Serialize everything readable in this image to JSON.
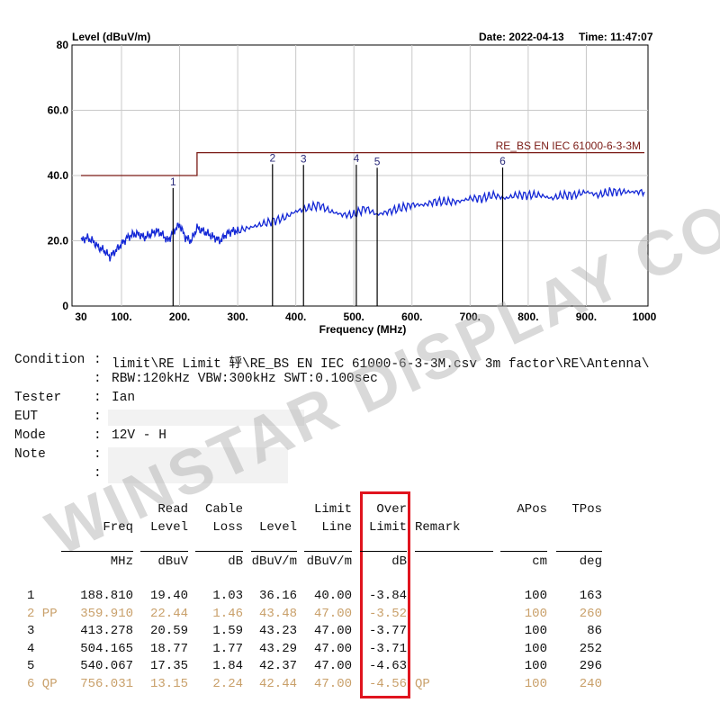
{
  "header": {
    "ylabel": "Level (dBuV/m)",
    "date_label": "Date: 2022-04-13",
    "time_label": "Time: 11:47:07"
  },
  "chart_data": {
    "type": "line",
    "xlabel": "Frequency (MHz)",
    "ylabel": "Level (dBuV/m)",
    "xlim": [
      30,
      1000
    ],
    "ylim": [
      0,
      80
    ],
    "x_ticks": [
      "30",
      "100.",
      "200.",
      "300.",
      "400.",
      "500.",
      "600.",
      "700.",
      "800.",
      "900.",
      "1000"
    ],
    "x_tick_values": [
      30,
      100,
      200,
      300,
      400,
      500,
      600,
      700,
      800,
      900,
      1000
    ],
    "y_ticks": [
      "0",
      "20.0",
      "40.0",
      "60.0",
      "80"
    ],
    "y_tick_values": [
      0,
      20,
      40,
      60,
      80
    ],
    "limit_label": "RE_BS EN IEC 61000-6-3-3M",
    "limit_line": {
      "x": [
        30,
        230,
        230,
        1000
      ],
      "y": [
        40,
        40,
        47,
        47
      ]
    },
    "trace": {
      "x": [
        30,
        40,
        50,
        60,
        70,
        80,
        90,
        100,
        110,
        120,
        130,
        140,
        150,
        160,
        170,
        180,
        190,
        200,
        210,
        220,
        230,
        240,
        250,
        260,
        270,
        280,
        290,
        300,
        320,
        340,
        360,
        380,
        400,
        420,
        440,
        460,
        480,
        500,
        520,
        540,
        560,
        580,
        600,
        620,
        640,
        660,
        680,
        700,
        720,
        740,
        760,
        780,
        800,
        820,
        840,
        860,
        880,
        900,
        920,
        940,
        960,
        980,
        1000
      ],
      "y": [
        20,
        21,
        20,
        18,
        17,
        15,
        17,
        19,
        21,
        22,
        22,
        21,
        22,
        23,
        22,
        20,
        23,
        25,
        21,
        20,
        24,
        23,
        22,
        21,
        20,
        22,
        23,
        23,
        24,
        25,
        26,
        27,
        29,
        30,
        31,
        29,
        28,
        28,
        30,
        28,
        29,
        30,
        31,
        31,
        32,
        32,
        32,
        33,
        33,
        34,
        33,
        34,
        34,
        34,
        33,
        34,
        34,
        35,
        34,
        35,
        35,
        35,
        35
      ]
    },
    "peak_markers": [
      {
        "label": "1",
        "x": 188.81,
        "y": 36.16
      },
      {
        "label": "2",
        "x": 359.91,
        "y": 43.48
      },
      {
        "label": "3",
        "x": 413.278,
        "y": 43.23
      },
      {
        "label": "4",
        "x": 504.165,
        "y": 43.29
      },
      {
        "label": "5",
        "x": 540.067,
        "y": 42.37
      },
      {
        "label": "6",
        "x": 756.031,
        "y": 42.44
      }
    ],
    "colors": {
      "trace": "#1428d6",
      "limit": "#7a1a14",
      "marker": "#000000",
      "grid": "#c8c8c8"
    },
    "grid": true
  },
  "conditions": [
    {
      "key": "Condition",
      "value": "limit\\RE Limit 轷\\RE_BS EN IEC 61000-6-3-3M.csv 3m factor\\RE\\Antenna\\"
    },
    {
      "key": "",
      "value": "RBW:120kHz VBW:300kHz SWT:0.100sec"
    },
    {
      "key": "Tester",
      "value": "Ian"
    },
    {
      "key": "EUT",
      "value": ""
    },
    {
      "key": "Mode",
      "value": "12V - H"
    },
    {
      "key": "Note",
      "value": ""
    },
    {
      "key": "",
      "value": ""
    }
  ],
  "table": {
    "headers": {
      "read_1": "Read",
      "read_2": "Level",
      "cable_1": "Cable",
      "cable_2": "Loss",
      "freq": "Freq",
      "level": "Level",
      "limit_1": "Limit",
      "limit_2": "Line",
      "over_1": "Over",
      "over_2": "Limit",
      "remark": "Remark",
      "apos": "APos",
      "tpos": "TPos"
    },
    "units": {
      "freq": "MHz",
      "read": "dBuV",
      "cable": "dB",
      "level": "dBuV/m",
      "limit": "dBuV/m",
      "over": "dB",
      "apos": "cm",
      "tpos": "deg"
    },
    "rows": [
      {
        "no": "1",
        "freq": "188.810",
        "read": "19.40",
        "cable": "1.03",
        "level": "36.16",
        "limit": "40.00",
        "over": "-3.84",
        "remark": "",
        "apos": "100",
        "tpos": "163",
        "highlight": false
      },
      {
        "no": "2 PP",
        "freq": "359.910",
        "read": "22.44",
        "cable": "1.46",
        "level": "43.48",
        "limit": "47.00",
        "over": "-3.52",
        "remark": "",
        "apos": "100",
        "tpos": "260",
        "highlight": true
      },
      {
        "no": "3",
        "freq": "413.278",
        "read": "20.59",
        "cable": "1.59",
        "level": "43.23",
        "limit": "47.00",
        "over": "-3.77",
        "remark": "",
        "apos": "100",
        "tpos": "86",
        "highlight": false
      },
      {
        "no": "4",
        "freq": "504.165",
        "read": "18.77",
        "cable": "1.77",
        "level": "43.29",
        "limit": "47.00",
        "over": "-3.71",
        "remark": "",
        "apos": "100",
        "tpos": "252",
        "highlight": false
      },
      {
        "no": "5",
        "freq": "540.067",
        "read": "17.35",
        "cable": "1.84",
        "level": "42.37",
        "limit": "47.00",
        "over": "-4.63",
        "remark": "",
        "apos": "100",
        "tpos": "296",
        "highlight": false
      },
      {
        "no": "6 QP",
        "freq": "756.031",
        "read": "13.15",
        "cable": "2.24",
        "level": "42.44",
        "limit": "47.00",
        "over": "-4.56",
        "remark": "QP",
        "apos": "100",
        "tpos": "240",
        "highlight": true
      }
    ],
    "colors": {
      "normal": "#111111",
      "highlight": "#c9a06a",
      "box": "#e0141e"
    }
  },
  "watermark": "WINSTAR DISPLAY CO., LTD."
}
